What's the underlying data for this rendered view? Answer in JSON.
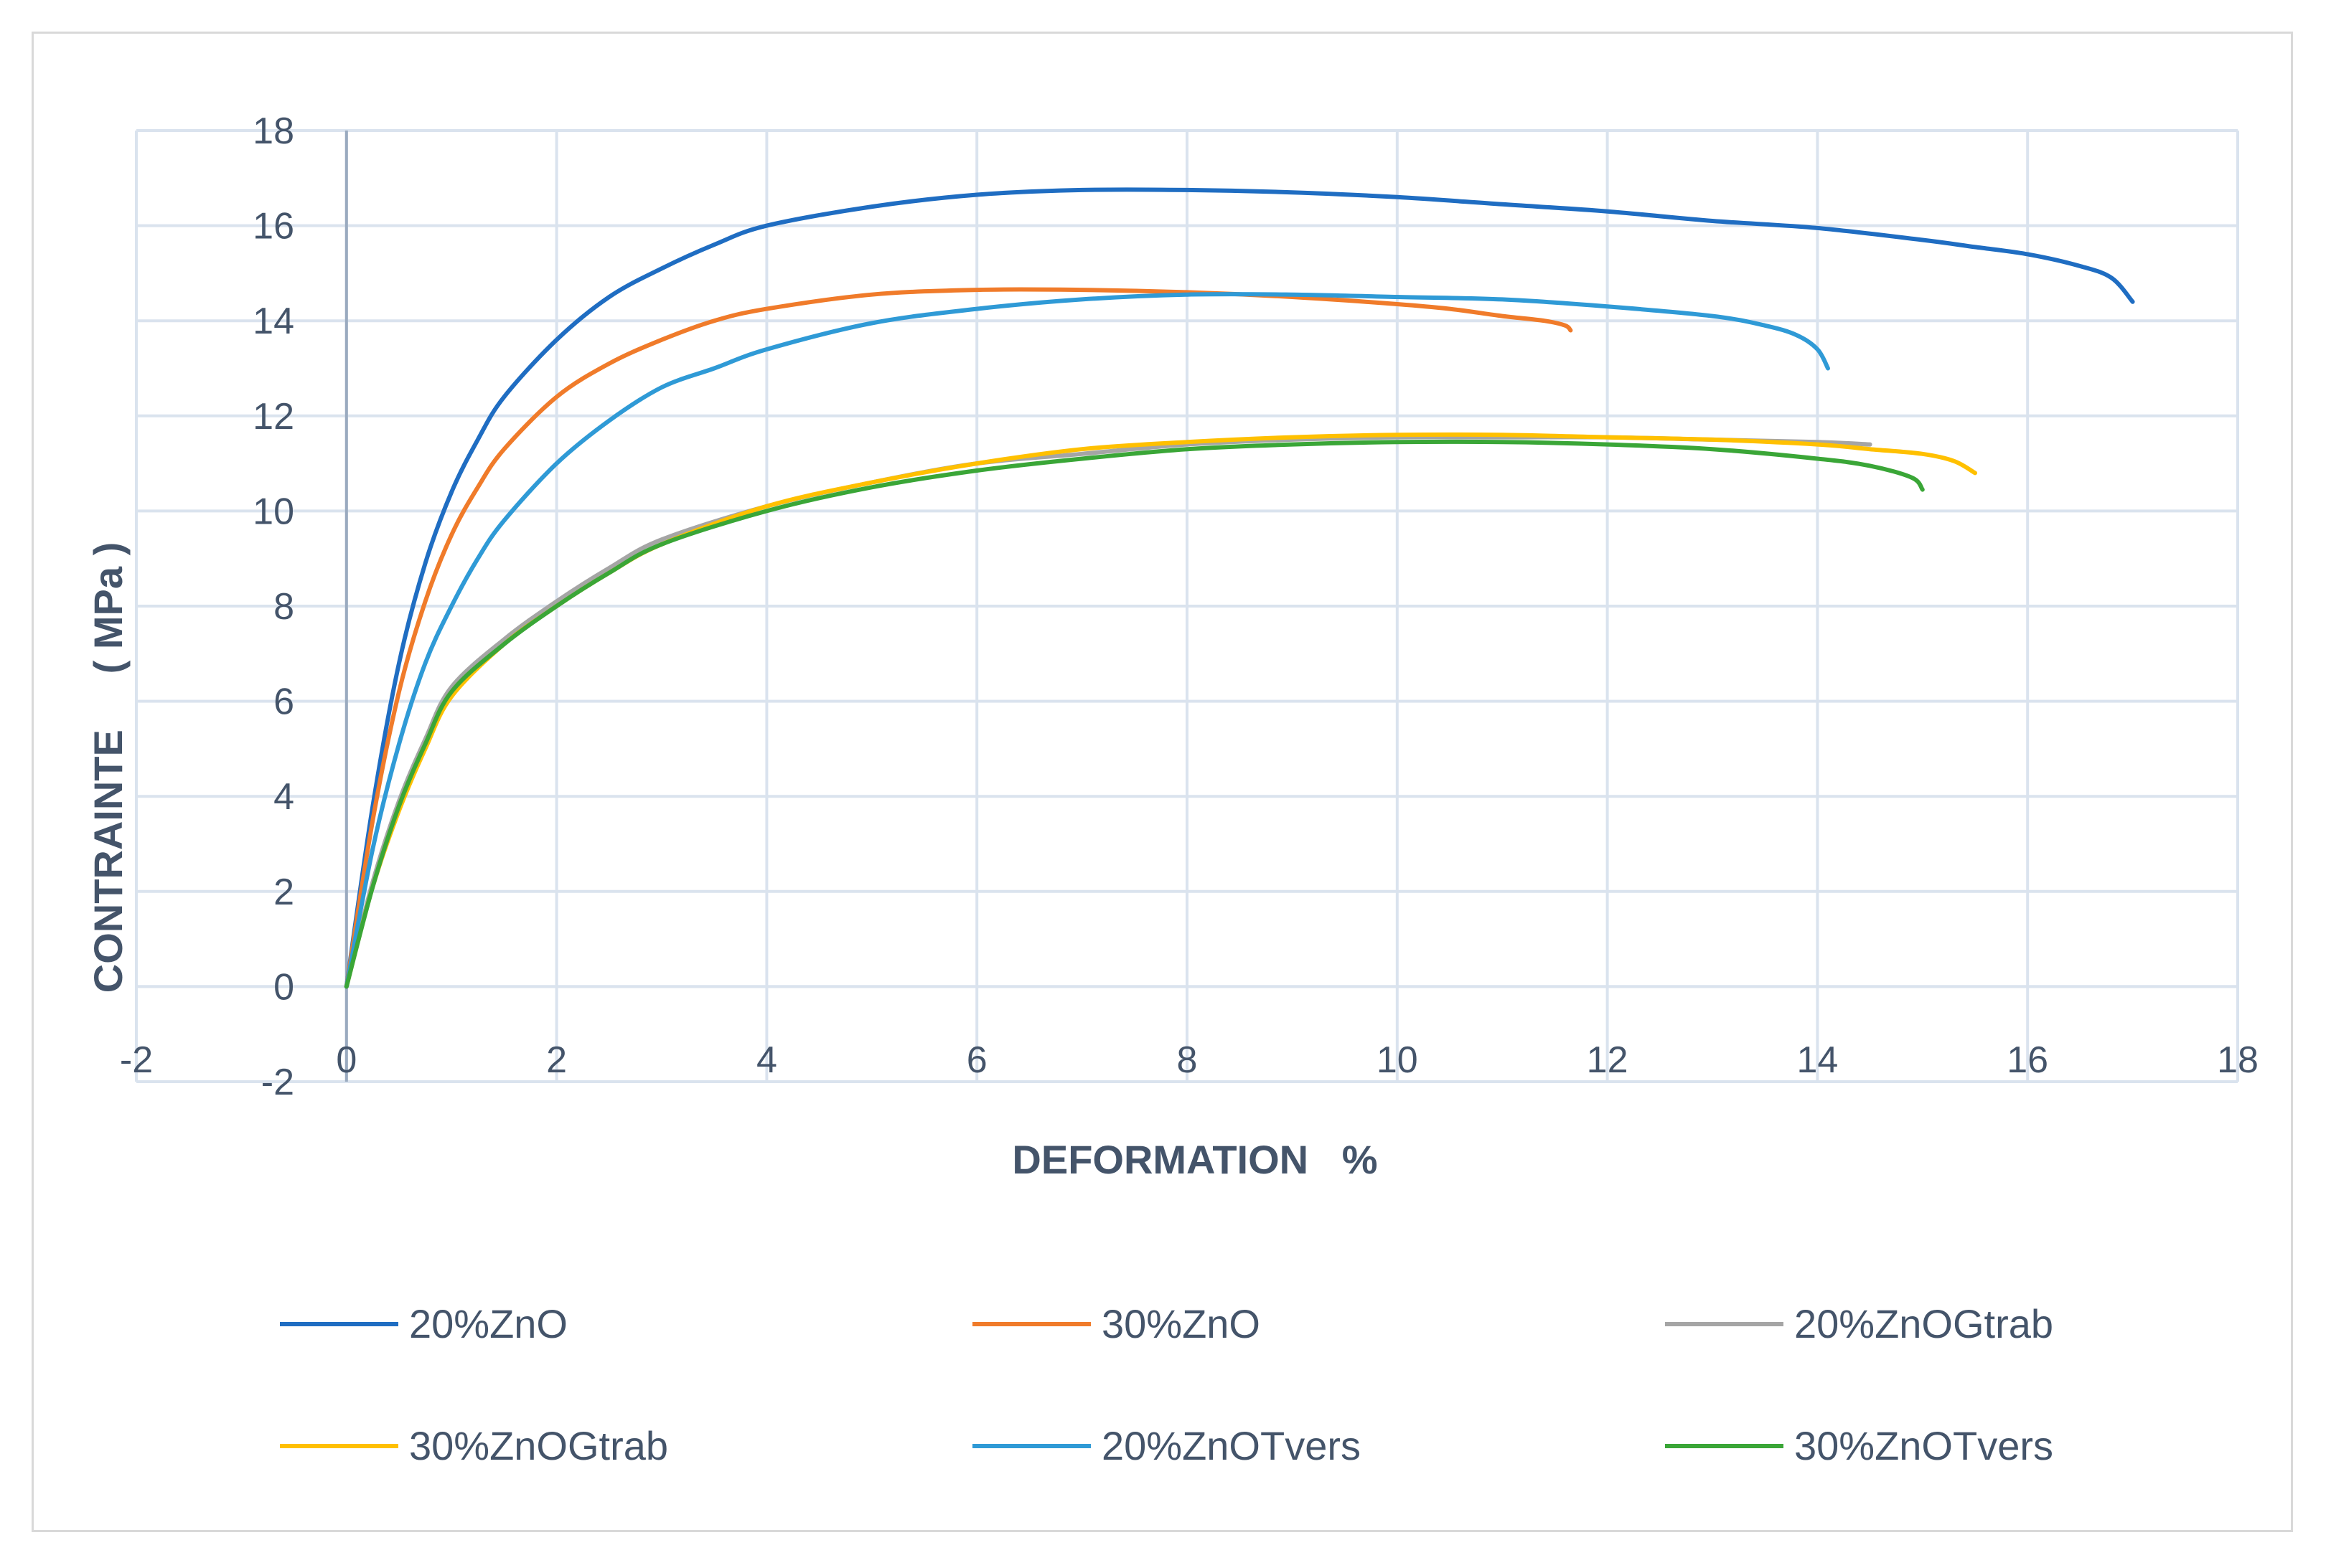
{
  "chart_data": {
    "type": "line",
    "title": "",
    "xlabel": "DEFORMATION   %",
    "ylabel": "CONTRAINTE     ( MPa )",
    "xlim": [
      -2,
      18
    ],
    "ylim": [
      -2,
      18
    ],
    "xticks": [
      -2,
      0,
      2,
      4,
      6,
      8,
      10,
      12,
      14,
      16,
      18
    ],
    "yticks": [
      -2,
      0,
      2,
      4,
      6,
      8,
      10,
      12,
      14,
      16,
      18
    ],
    "grid": true,
    "legend_position": "bottom",
    "series": [
      {
        "name": "20%ZnO",
        "color": "#1f6dc2",
        "x": [
          0,
          0.25,
          0.5,
          0.75,
          1,
          1.25,
          1.5,
          2,
          2.5,
          3,
          3.5,
          4,
          5,
          6,
          7,
          8,
          9,
          10,
          11,
          12,
          13,
          14,
          15,
          15.5,
          16,
          16.5,
          16.8,
          17
        ],
        "y": [
          0,
          3.8,
          6.8,
          8.9,
          10.4,
          11.5,
          12.4,
          13.6,
          14.5,
          15.1,
          15.6,
          16.0,
          16.4,
          16.65,
          16.75,
          16.75,
          16.7,
          16.6,
          16.45,
          16.3,
          16.1,
          15.95,
          15.7,
          15.55,
          15.4,
          15.15,
          14.9,
          14.4
        ]
      },
      {
        "name": "30%ZnO",
        "color": "#f07b2a",
        "x": [
          0,
          0.25,
          0.5,
          0.75,
          1,
          1.25,
          1.5,
          2,
          2.5,
          3,
          3.5,
          4,
          5,
          6,
          7,
          8,
          9,
          10,
          10.5,
          11,
          11.4,
          11.6,
          11.65
        ],
        "y": [
          0,
          3.5,
          6.2,
          8.1,
          9.5,
          10.5,
          11.3,
          12.4,
          13.1,
          13.6,
          14.0,
          14.25,
          14.55,
          14.65,
          14.65,
          14.6,
          14.5,
          14.35,
          14.25,
          14.1,
          14.0,
          13.9,
          13.8
        ]
      },
      {
        "name": "20%ZnOGtrab",
        "color": "#a5a5a5",
        "x": [
          0,
          0.25,
          0.5,
          0.75,
          1,
          1.5,
          2,
          2.5,
          3,
          4,
          5,
          6,
          7,
          8,
          9,
          10,
          11,
          12,
          13,
          14,
          14.5
        ],
        "y": [
          0,
          2.2,
          3.9,
          5.2,
          6.3,
          7.3,
          8.1,
          8.8,
          9.4,
          10.1,
          10.6,
          11.0,
          11.2,
          11.4,
          11.5,
          11.55,
          11.55,
          11.55,
          11.5,
          11.45,
          11.4
        ]
      },
      {
        "name": "30%ZnOGtrab",
        "color": "#ffc000",
        "x": [
          0,
          0.25,
          0.5,
          0.75,
          1,
          1.5,
          2,
          2.5,
          3,
          4,
          5,
          6,
          7,
          8,
          9,
          10,
          11,
          12,
          13,
          14,
          14.5,
          15,
          15.3,
          15.5
        ],
        "y": [
          0,
          2.1,
          3.7,
          5.0,
          6.1,
          7.2,
          8.0,
          8.7,
          9.3,
          10.1,
          10.6,
          11.0,
          11.3,
          11.45,
          11.55,
          11.6,
          11.6,
          11.55,
          11.5,
          11.4,
          11.3,
          11.2,
          11.05,
          10.8
        ]
      },
      {
        "name": "20%ZnOTvers",
        "color": "#2f9ad6",
        "x": [
          0,
          0.25,
          0.5,
          0.75,
          1,
          1.25,
          1.5,
          2,
          2.5,
          3,
          3.5,
          4,
          5,
          6,
          7,
          8,
          9,
          10,
          11,
          12,
          13,
          13.5,
          13.8,
          14,
          14.1
        ],
        "y": [
          0,
          2.9,
          5.1,
          6.8,
          8.0,
          9.0,
          9.8,
          11.0,
          11.9,
          12.6,
          13.0,
          13.4,
          13.95,
          14.25,
          14.45,
          14.55,
          14.55,
          14.5,
          14.45,
          14.3,
          14.1,
          13.9,
          13.7,
          13.4,
          13.0
        ]
      },
      {
        "name": "30%ZnOTvers",
        "color": "#3aa637",
        "x": [
          0,
          0.25,
          0.5,
          0.75,
          1,
          1.5,
          2,
          2.5,
          3,
          4,
          5,
          6,
          7,
          8,
          9,
          10,
          11,
          12,
          13,
          14,
          14.5,
          14.9,
          15
        ],
        "y": [
          0,
          2.1,
          3.8,
          5.1,
          6.2,
          7.2,
          8.0,
          8.7,
          9.3,
          10.0,
          10.5,
          10.85,
          11.1,
          11.3,
          11.4,
          11.45,
          11.45,
          11.4,
          11.3,
          11.1,
          10.95,
          10.7,
          10.45
        ]
      }
    ]
  }
}
